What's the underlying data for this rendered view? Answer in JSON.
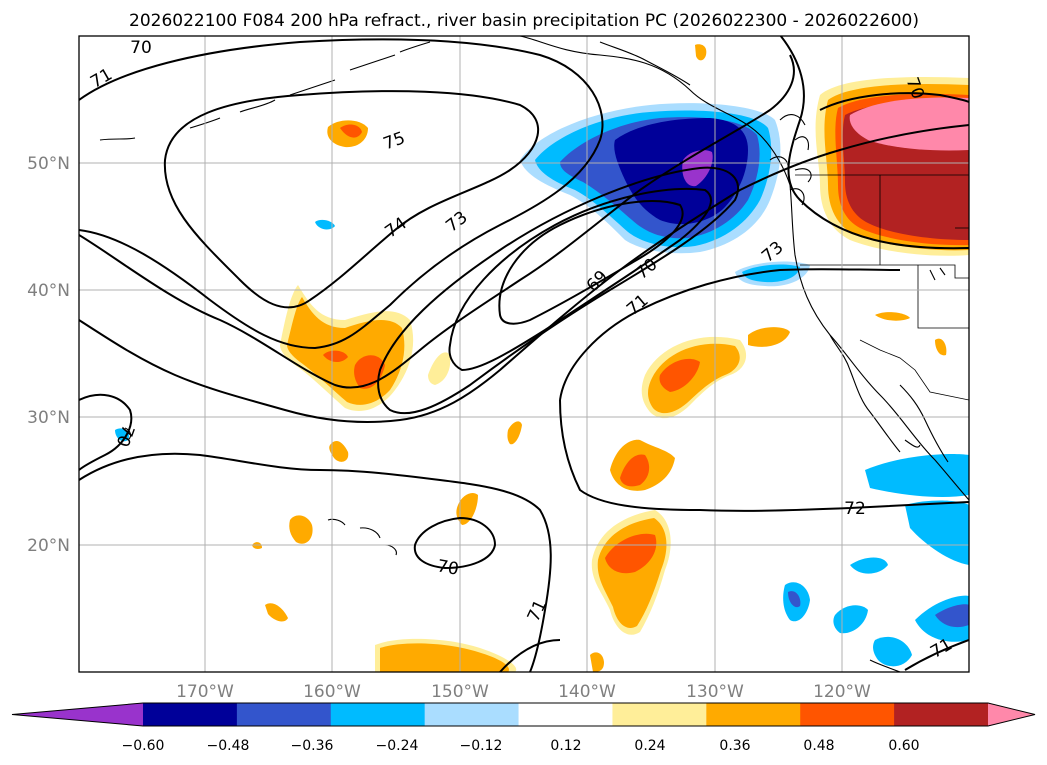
{
  "title": "2026022100 F084 200 hPa refract., river basin precipitation PC (2026022300 - 2026022600)",
  "map": {
    "lon_labels": [
      "170°W",
      "160°W",
      "150°W",
      "140°W",
      "130°W",
      "120°W"
    ],
    "lat_labels": [
      "50°N",
      "40°N",
      "30°N",
      "20°N"
    ],
    "lon_range": [
      -180,
      -110
    ],
    "lat_range": [
      10,
      60
    ],
    "grid": true
  },
  "contour_labels": [
    {
      "text": "70",
      "lon": -175,
      "lat": 59
    },
    {
      "text": "71",
      "lon": -178,
      "lat": 57
    },
    {
      "text": "75",
      "lon": -156,
      "lat": 52
    },
    {
      "text": "74",
      "lon": -155,
      "lat": 45
    },
    {
      "text": "73",
      "lon": -150,
      "lat": 46
    },
    {
      "text": "69",
      "lon": -139,
      "lat": 39
    },
    {
      "text": "70",
      "lon": -136,
      "lat": 42
    },
    {
      "text": "71",
      "lon": -136,
      "lat": 38
    },
    {
      "text": "73",
      "lon": -124,
      "lat": 43
    },
    {
      "text": "70",
      "lon": -116,
      "lat": 57
    },
    {
      "text": "70",
      "lon": -174,
      "lat": 28
    },
    {
      "text": "70",
      "lon": -149,
      "lat": 18
    },
    {
      "text": "71",
      "lon": -140,
      "lat": 14
    },
    {
      "text": "72",
      "lon": -119,
      "lat": 23
    },
    {
      "text": "71",
      "lon": -112,
      "lat": 11
    }
  ],
  "colorbar": {
    "ticks": [
      "−0.60",
      "−0.48",
      "−0.36",
      "−0.24",
      "−0.12",
      "0.12",
      "0.24",
      "0.36",
      "0.48",
      "0.60"
    ],
    "colors": [
      "#9933cc",
      "#000099",
      "#3355cc",
      "#00bbff",
      "#aaddff",
      "#ffffff",
      "#ffee99",
      "#ffaa00",
      "#ff5500",
      "#b22222",
      "#ff88aa"
    ],
    "extend": "both"
  }
}
